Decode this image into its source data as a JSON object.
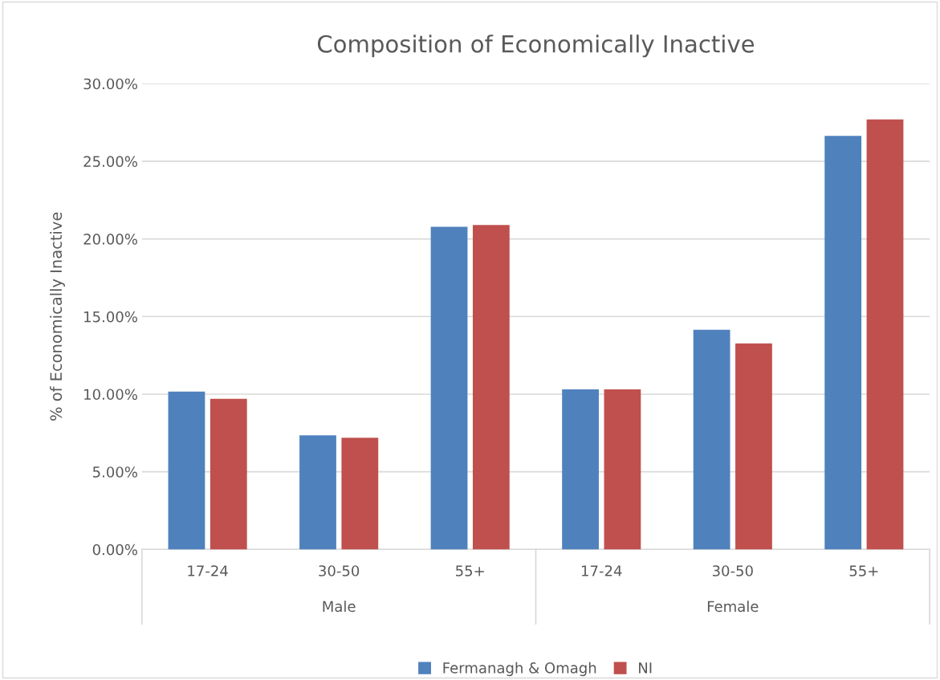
{
  "chart_data": {
    "type": "bar",
    "title": "Composition of Economically Inactive",
    "ylabel": "% of Economically Inactive",
    "categories": [
      "17-24",
      "30-50",
      "55+",
      "17-24",
      "30-50",
      "55+"
    ],
    "annotations": [
      "Male",
      "Female"
    ],
    "series": [
      {
        "name": "Fermanagh & Omagh",
        "color": "#4f81bd",
        "values": [
          10.17,
          7.35,
          20.78,
          10.31,
          14.15,
          26.64
        ]
      },
      {
        "name": "NI",
        "color": "#c0504d",
        "values": [
          9.7,
          7.19,
          20.9,
          10.31,
          13.27,
          27.7
        ]
      }
    ],
    "ylim": [
      0,
      30
    ],
    "yticks": [
      {
        "value": 0,
        "label": "0.00%"
      },
      {
        "value": 5,
        "label": "5.00%"
      },
      {
        "value": 10,
        "label": "10.00%"
      },
      {
        "value": 15,
        "label": "15.00%"
      },
      {
        "value": 20,
        "label": "20.00%"
      },
      {
        "value": 25,
        "label": "25.00%"
      },
      {
        "value": 30,
        "label": "30.00%"
      }
    ],
    "grid": "y",
    "legend": "bottom"
  }
}
